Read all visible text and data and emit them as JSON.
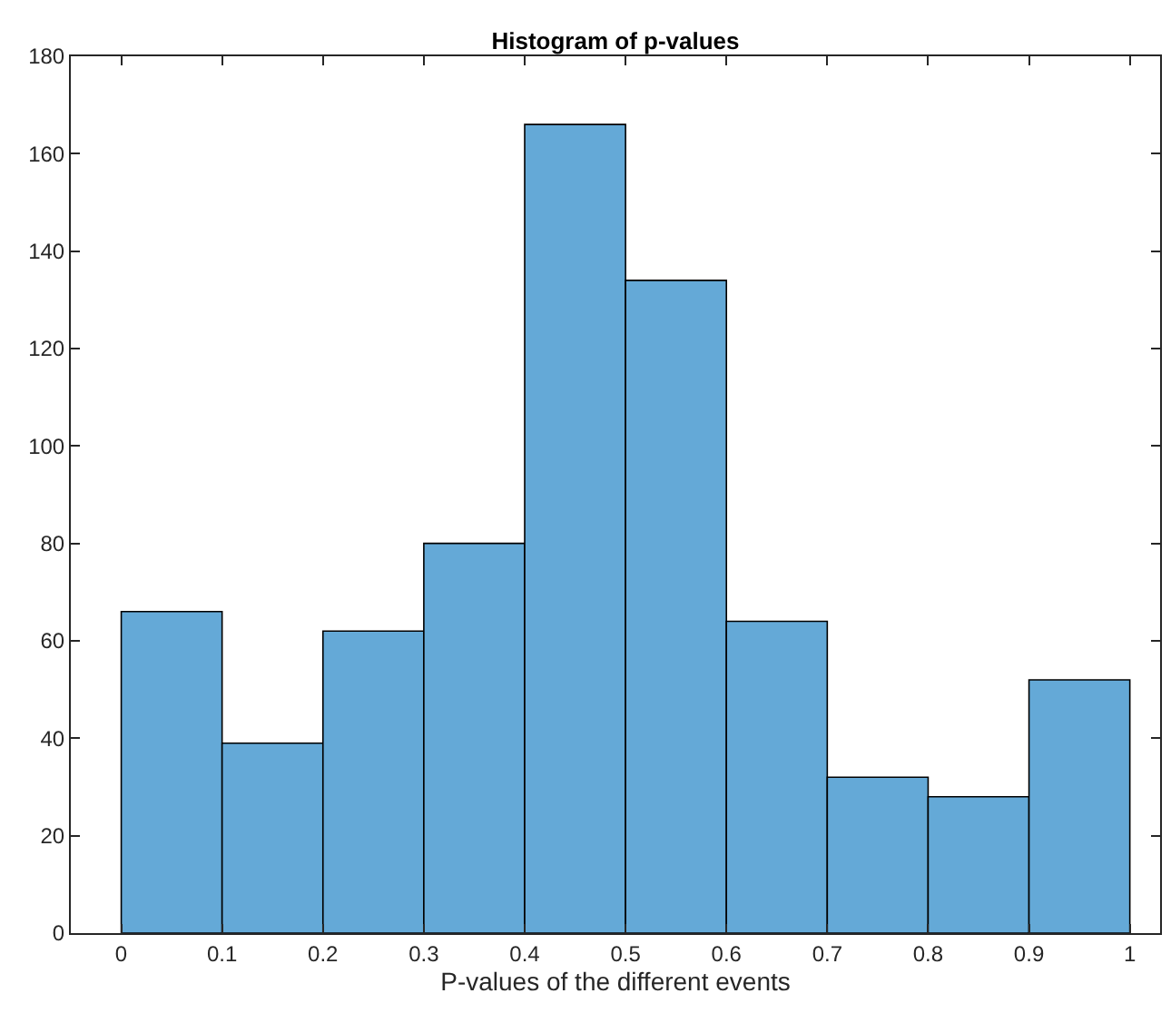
{
  "chart_data": {
    "type": "histogram",
    "title": "Histogram of p-values",
    "xlabel": "P-values of the different events",
    "bins": [
      0,
      0.1,
      0.2,
      0.3,
      0.4,
      0.5,
      0.6,
      0.7,
      0.8,
      0.9,
      1
    ],
    "values": [
      66,
      39,
      62,
      80,
      166,
      134,
      64,
      32,
      28,
      52
    ],
    "color": "#64a9d7",
    "xlim": [
      -0.05,
      1.03
    ],
    "xticks": [
      0,
      0.1,
      0.2,
      0.3,
      0.4,
      0.5,
      0.6,
      0.7,
      0.8,
      0.9,
      1
    ],
    "ylim": [
      0,
      180
    ],
    "yticks": [
      0,
      20,
      40,
      60,
      80,
      100,
      120,
      140,
      160,
      180
    ],
    "grid": false,
    "legend": false
  }
}
